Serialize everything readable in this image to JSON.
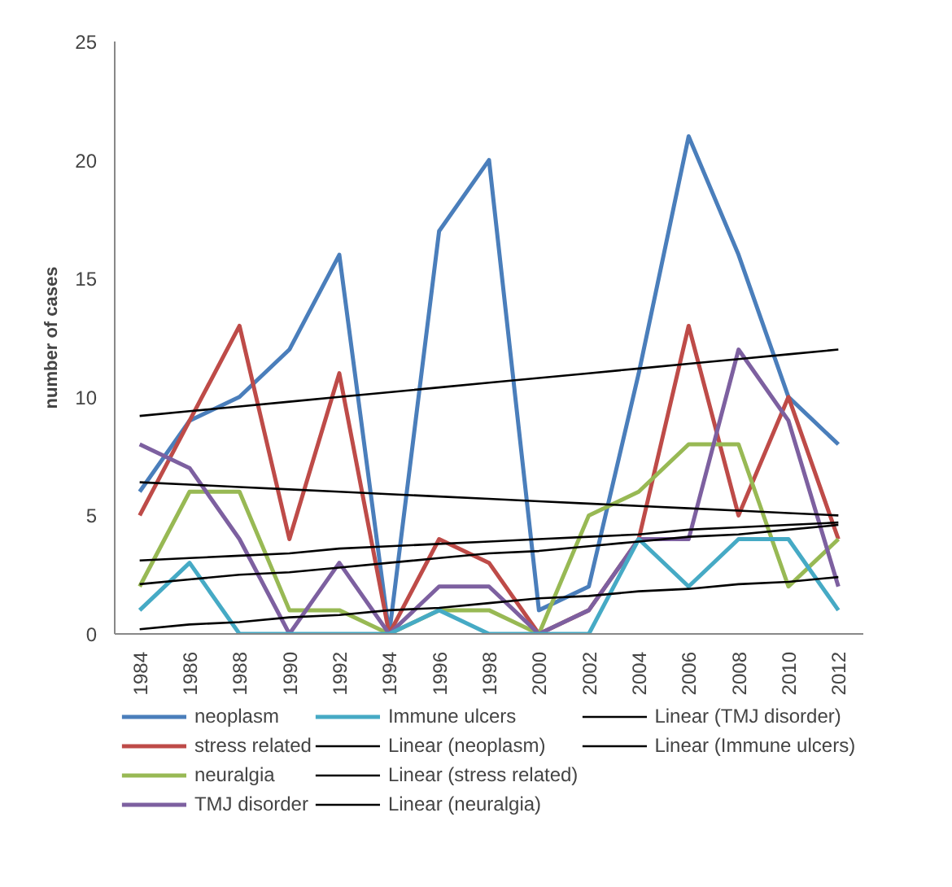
{
  "chart_data": {
    "type": "line",
    "ylabel": "number of cases",
    "x": [
      1984,
      1986,
      1988,
      1990,
      1992,
      1994,
      1996,
      1998,
      2000,
      2002,
      2004,
      2006,
      2008,
      2010,
      2012
    ],
    "xlim": [
      1983,
      2013
    ],
    "xticks": [
      1984,
      1986,
      1988,
      1990,
      1992,
      1994,
      1996,
      1998,
      2000,
      2002,
      2004,
      2006,
      2008,
      2010,
      2012
    ],
    "ylim": [
      0,
      25
    ],
    "yticks": [
      0,
      5,
      10,
      15,
      20,
      25
    ],
    "grid": false,
    "legend": "bottom",
    "marker": "none",
    "line_style": "solid",
    "series": [
      {
        "name": "neoplasm",
        "color": "#4a7ebb",
        "values": [
          6,
          9,
          10,
          12,
          16,
          0,
          17,
          20,
          1,
          2,
          11,
          21,
          16,
          10,
          8
        ]
      },
      {
        "name": "stress related",
        "color": "#be4b48",
        "values": [
          5,
          9,
          13,
          4,
          11,
          0,
          4,
          3,
          0,
          1,
          4,
          13,
          5,
          10,
          4
        ]
      },
      {
        "name": "neuralgia",
        "color": "#98b954",
        "values": [
          2,
          6,
          6,
          1,
          1,
          0,
          1,
          1,
          0,
          5,
          6,
          8,
          8,
          2,
          4
        ]
      },
      {
        "name": "TMJ disorder",
        "color": "#7d60a0",
        "values": [
          8,
          7,
          4,
          0,
          3,
          0,
          2,
          2,
          0,
          1,
          4,
          4,
          12,
          9,
          2
        ]
      },
      {
        "name": "Immune ulcers",
        "color": "#46aac5",
        "values": [
          1,
          3,
          0,
          0,
          0,
          0,
          1,
          0,
          0,
          0,
          4,
          2,
          4,
          4,
          1
        ]
      },
      {
        "name": "Linear (neoplasm)",
        "color": "#000000",
        "values": [
          9.2,
          9.4,
          9.6,
          9.8,
          10.0,
          10.2,
          10.4,
          10.6,
          10.8,
          11.0,
          11.2,
          11.4,
          11.6,
          11.8,
          12.0
        ]
      },
      {
        "name": "Linear (stress related)",
        "color": "#000000",
        "values": [
          3.1,
          3.2,
          3.3,
          3.4,
          3.6,
          3.7,
          3.8,
          3.9,
          4.0,
          4.1,
          4.2,
          4.4,
          4.5,
          4.6,
          4.7
        ]
      },
      {
        "name": "Linear (neuralgia)",
        "color": "#000000",
        "values": [
          2.1,
          2.3,
          2.5,
          2.6,
          2.8,
          3.0,
          3.2,
          3.4,
          3.5,
          3.7,
          3.9,
          4.1,
          4.2,
          4.4,
          4.6
        ]
      },
      {
        "name": "Linear (TMJ disorder)",
        "color": "#000000",
        "values": [
          6.4,
          6.3,
          6.2,
          6.1,
          6.0,
          5.9,
          5.8,
          5.7,
          5.6,
          5.5,
          5.4,
          5.3,
          5.2,
          5.1,
          5.0
        ]
      },
      {
        "name": "Linear (Immune ulcers)",
        "color": "#000000",
        "values": [
          0.2,
          0.4,
          0.5,
          0.7,
          0.8,
          1.0,
          1.1,
          1.3,
          1.5,
          1.6,
          1.8,
          1.9,
          2.1,
          2.2,
          2.4
        ]
      }
    ]
  }
}
